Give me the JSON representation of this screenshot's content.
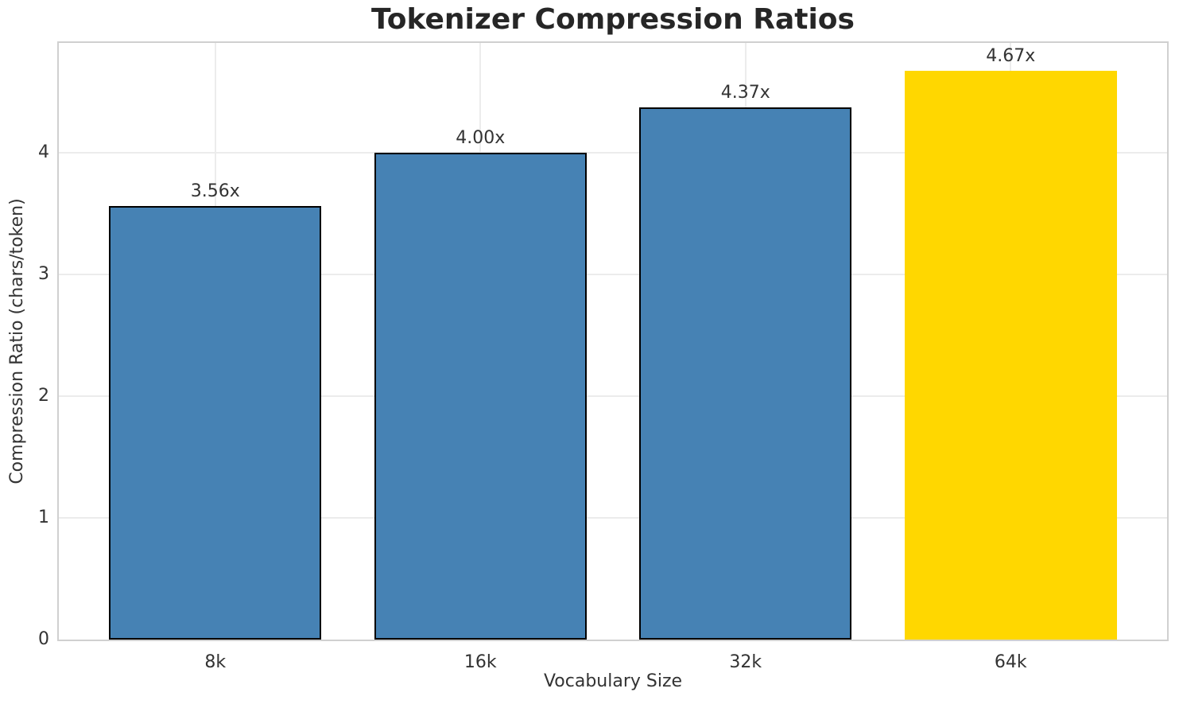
{
  "title": "Tokenizer Compression Ratios",
  "colors": {
    "bar_fill": "#4682B4",
    "highlight_fill": "#FFD700",
    "bar_edge": "#000000",
    "grid": "#ECECEC",
    "spine": "#D0D0D0",
    "text": "#333333",
    "title_text": "#262626",
    "background": "#FFFFFF"
  },
  "chart_data": {
    "type": "bar",
    "title": "Tokenizer Compression Ratios",
    "xlabel": "Vocabulary Size",
    "ylabel": "Compression Ratio (chars/token)",
    "categories": [
      "8k",
      "16k",
      "32k",
      "64k"
    ],
    "values": [
      3.56,
      4.0,
      4.37,
      4.67
    ],
    "bar_labels": [
      "3.56x",
      "4.00x",
      "4.37x",
      "4.67x"
    ],
    "highlight_index": 3,
    "highlight_category": "64k",
    "ylim": [
      0,
      4.9
    ],
    "yticks": [
      0,
      1,
      2,
      3,
      4
    ],
    "xlim": [
      -0.59,
      3.59
    ],
    "bar_width": 0.8,
    "grid": true,
    "legend_position": "none"
  }
}
